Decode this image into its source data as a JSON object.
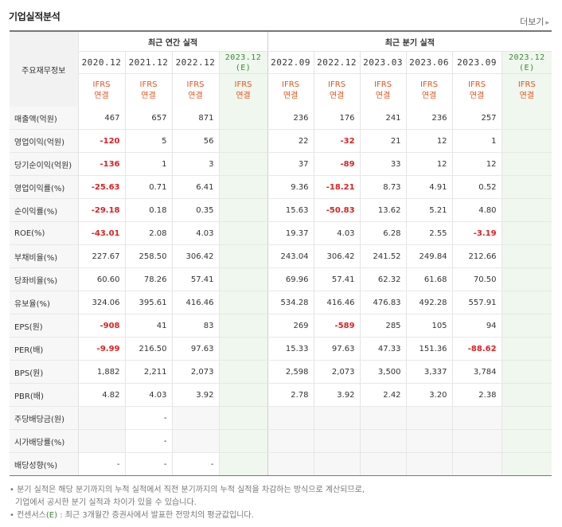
{
  "header": {
    "title": "기업실적분석",
    "more": "더보기"
  },
  "groups": {
    "label_col": "주요재무정보",
    "annual": "최근 연간 실적",
    "quarterly": "최근 분기 실적"
  },
  "periods": [
    {
      "p": "2020.12",
      "e": ""
    },
    {
      "p": "2021.12",
      "e": ""
    },
    {
      "p": "2022.12",
      "e": ""
    },
    {
      "p": "2023.12",
      "e": "(E)"
    },
    {
      "p": "2022.09",
      "e": ""
    },
    {
      "p": "2022.12",
      "e": ""
    },
    {
      "p": "2023.03",
      "e": ""
    },
    {
      "p": "2023.06",
      "e": ""
    },
    {
      "p": "2023.09",
      "e": ""
    },
    {
      "p": "2023.12",
      "e": "(E)"
    }
  ],
  "std": {
    "a": "IFRS",
    "b": "연결"
  },
  "rows": [
    {
      "label": "매출액(억원)",
      "v": [
        "467",
        "657",
        "871",
        "",
        "236",
        "176",
        "241",
        "236",
        "257",
        ""
      ]
    },
    {
      "label": "영업이익(억원)",
      "v": [
        "-120",
        "5",
        "56",
        "",
        "22",
        "-32",
        "21",
        "12",
        "1",
        ""
      ]
    },
    {
      "label": "당기순이익(억원)",
      "v": [
        "-136",
        "1",
        "3",
        "",
        "37",
        "-89",
        "33",
        "12",
        "12",
        ""
      ]
    },
    {
      "label": "영업이익률(%)",
      "v": [
        "-25.63",
        "0.71",
        "6.41",
        "",
        "9.36",
        "-18.21",
        "8.73",
        "4.91",
        "0.52",
        ""
      ]
    },
    {
      "label": "순이익률(%)",
      "v": [
        "-29.18",
        "0.18",
        "0.35",
        "",
        "15.63",
        "-50.83",
        "13.62",
        "5.21",
        "4.80",
        ""
      ]
    },
    {
      "label": "ROE(%)",
      "v": [
        "-43.01",
        "2.08",
        "4.03",
        "",
        "19.37",
        "4.03",
        "6.28",
        "2.55",
        "-3.19",
        ""
      ]
    },
    {
      "label": "부채비율(%)",
      "v": [
        "227.67",
        "258.50",
        "306.42",
        "",
        "243.04",
        "306.42",
        "241.52",
        "249.84",
        "212.66",
        ""
      ]
    },
    {
      "label": "당좌비율(%)",
      "v": [
        "60.60",
        "78.26",
        "57.41",
        "",
        "69.96",
        "57.41",
        "62.32",
        "61.68",
        "70.50",
        ""
      ]
    },
    {
      "label": "유보율(%)",
      "v": [
        "324.06",
        "395.61",
        "416.46",
        "",
        "534.28",
        "416.46",
        "476.83",
        "492.28",
        "557.91",
        ""
      ]
    },
    {
      "label": "EPS(원)",
      "v": [
        "-908",
        "41",
        "83",
        "",
        "269",
        "-589",
        "285",
        "105",
        "94",
        ""
      ]
    },
    {
      "label": "PER(배)",
      "v": [
        "-9.99",
        "216.50",
        "97.63",
        "",
        "15.33",
        "97.63",
        "47.33",
        "151.36",
        "-88.62",
        ""
      ]
    },
    {
      "label": "BPS(원)",
      "v": [
        "1,882",
        "2,211",
        "2,073",
        "",
        "2,598",
        "2,073",
        "3,500",
        "3,337",
        "3,784",
        ""
      ]
    },
    {
      "label": "PBR(배)",
      "v": [
        "4.82",
        "4.03",
        "3.92",
        "",
        "2.78",
        "3.92",
        "2.42",
        "3.20",
        "2.38",
        ""
      ]
    },
    {
      "label": "주당배당금(원)",
      "v": [
        "",
        "-",
        "",
        "",
        "",
        "",
        "",
        "",
        "",
        ""
      ]
    },
    {
      "label": "시가배당률(%)",
      "v": [
        "",
        "-",
        "",
        "",
        "",
        "",
        "",
        "",
        "",
        ""
      ]
    },
    {
      "label": "배당성향(%)",
      "v": [
        "-",
        "-",
        "-",
        "",
        "",
        "",
        "",
        "",
        "",
        ""
      ]
    }
  ],
  "notes": {
    "line1": "분기 실적은 해당 분기까지의 누적 실적에서 직전 분기까지의 누적 실적을 차감하는 방식으로 계산되므로,",
    "line2": "기업에서 공시한 분기 실적과 차이가 있을 수 있습니다.",
    "line3a": "컨센서스",
    "line3e": "(E)",
    "line3b": " : 최근 3개월간 증권사에서 발표한 전망치의 평균값입니다."
  }
}
